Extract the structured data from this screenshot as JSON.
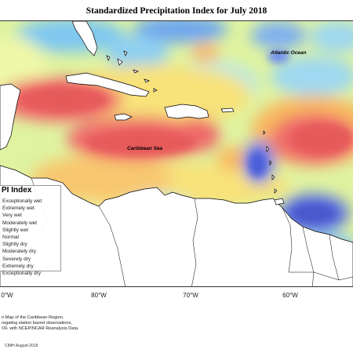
{
  "title": "Standardized Precipitation Index for July 2018",
  "map": {
    "labels": {
      "atlantic": "Atlantic Ocean",
      "caribbean": "Caribbean Sea"
    },
    "longitudes": [
      "0°W",
      "80°W",
      "70°W",
      "60°W"
    ]
  },
  "legend": {
    "title": "PI Index",
    "items": [
      {
        "label": "Exceptionally wet",
        "color": "#3b4cc0"
      },
      {
        "label": "Extremely wet",
        "color": "#5a6fe0"
      },
      {
        "label": "Very wet",
        "color": "#6f9bf0"
      },
      {
        "label": "Moderately wet",
        "color": "#8ec8f0"
      },
      {
        "label": "Slightly wet",
        "color": "#b8e6d8"
      },
      {
        "label": "Normal",
        "color": "#e8f5a8"
      },
      {
        "label": "Slightly dry",
        "color": "#f8e27a"
      },
      {
        "label": "Moderately dry",
        "color": "#f8b860"
      },
      {
        "label": "Severely dry",
        "color": "#f58a5a"
      },
      {
        "label": "Extremely dry",
        "color": "#ef6a6a"
      },
      {
        "label": "Exceptionally dry",
        "color": "#e05050"
      }
    ]
  },
  "credits": [
    "n Map of the Caribbean Region.",
    "regating station based observations,",
    "OF, with NCEP/NCAR Reanalysis Data."
  ],
  "signature": "CIMH August-2018"
}
